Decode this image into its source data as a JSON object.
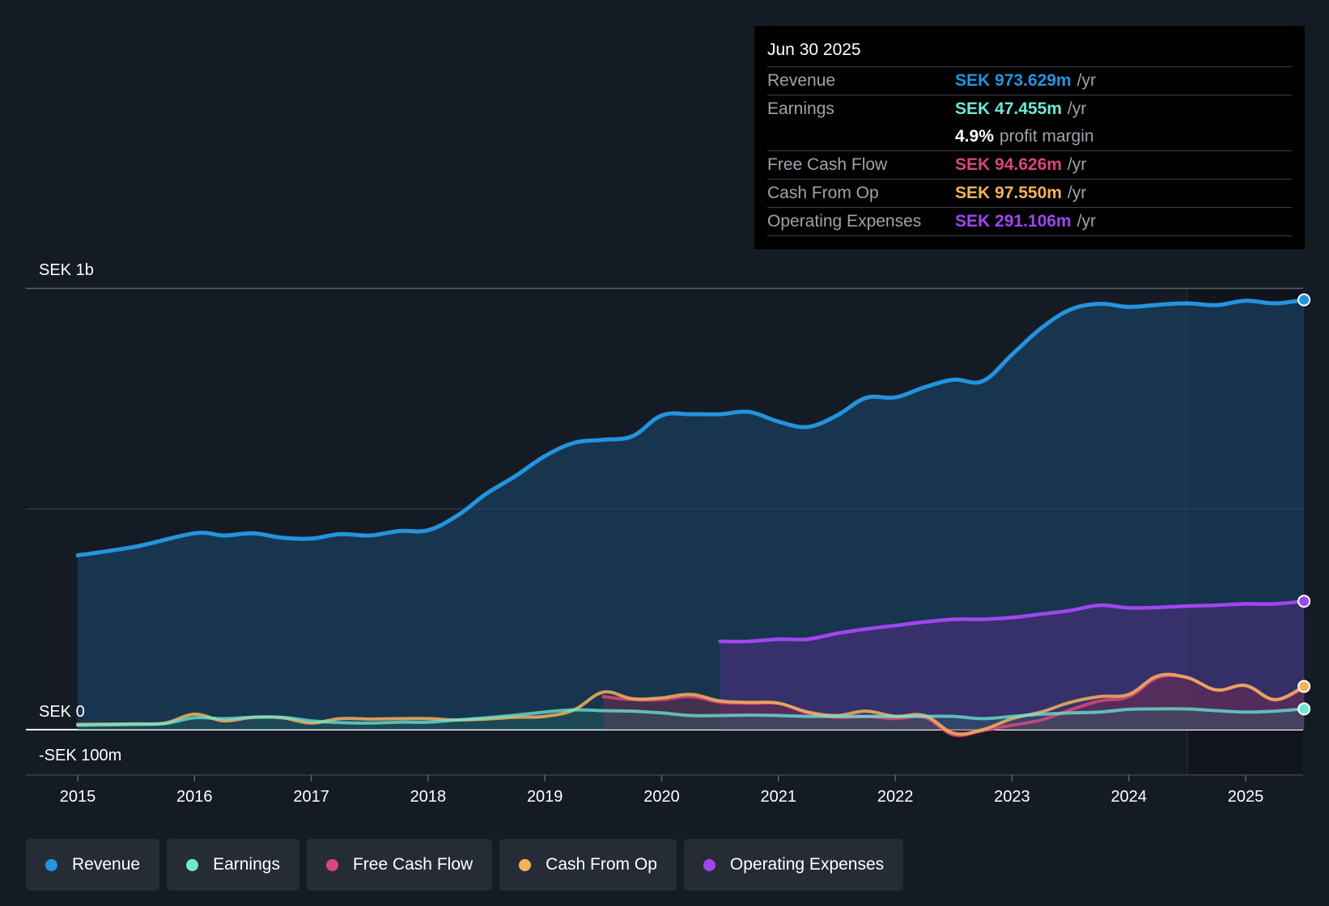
{
  "tooltip": {
    "date": "Jun 30 2025",
    "rows": {
      "revenue": {
        "label": "Revenue",
        "value": "SEK 973.629m",
        "unit": "/yr",
        "color": "#2394df"
      },
      "earnings": {
        "label": "Earnings",
        "value": "SEK 47.455m",
        "unit": "/yr",
        "color": "#6ee8d4"
      },
      "profit_margin": {
        "value": "4.9%",
        "text": "profit margin"
      },
      "fcf": {
        "label": "Free Cash Flow",
        "value": "SEK 94.626m",
        "unit": "/yr",
        "color": "#d9467c"
      },
      "cfo": {
        "label": "Cash From Op",
        "value": "SEK 97.550m",
        "unit": "/yr",
        "color": "#f2b25c"
      },
      "opex": {
        "label": "Operating Expenses",
        "value": "SEK 291.106m",
        "unit": "/yr",
        "color": "#a046ee"
      }
    }
  },
  "legend": [
    {
      "label": "Revenue",
      "color": "#2394df"
    },
    {
      "label": "Earnings",
      "color": "#6ee8d4"
    },
    {
      "label": "Free Cash Flow",
      "color": "#d9467c"
    },
    {
      "label": "Cash From Op",
      "color": "#f2b25c"
    },
    {
      "label": "Operating Expenses",
      "color": "#a046ee"
    }
  ],
  "chart_data": {
    "type": "area",
    "title": "",
    "xlabel": "",
    "ylabel": "",
    "y_axis_labels": {
      "top": "SEK 1b",
      "zero": "SEK 0",
      "bottom": "-SEK 100m"
    },
    "ylim": [
      -100,
      1000
    ],
    "xlim": [
      2015.0,
      2025.5
    ],
    "x_ticks": [
      "2015",
      "2016",
      "2017",
      "2018",
      "2019",
      "2020",
      "2021",
      "2022",
      "2023",
      "2024",
      "2025"
    ],
    "grid": true,
    "forecast_shading_start": 2024.5,
    "series": [
      {
        "name": "Revenue",
        "color": "#2394df",
        "fill": true,
        "x": [
          2015.0,
          2015.5,
          2016.0,
          2016.25,
          2016.5,
          2016.75,
          2017.0,
          2017.25,
          2017.5,
          2017.75,
          2018.0,
          2018.25,
          2018.5,
          2018.75,
          2019.0,
          2019.25,
          2019.5,
          2019.75,
          2020.0,
          2020.25,
          2020.5,
          2020.75,
          2021.0,
          2021.25,
          2021.5,
          2021.75,
          2022.0,
          2022.25,
          2022.5,
          2022.75,
          2023.0,
          2023.25,
          2023.5,
          2023.75,
          2024.0,
          2024.25,
          2024.5,
          2024.75,
          2025.0,
          2025.25,
          2025.5
        ],
        "values": [
          395,
          415,
          445,
          440,
          445,
          435,
          433,
          443,
          440,
          450,
          452,
          485,
          535,
          575,
          620,
          650,
          657,
          665,
          712,
          715,
          715,
          720,
          698,
          686,
          712,
          752,
          753,
          776,
          793,
          790,
          850,
          910,
          952,
          965,
          958,
          963,
          966,
          962,
          972,
          966,
          974
        ]
      },
      {
        "name": "Operating Expenses",
        "color": "#a046ee",
        "fill": true,
        "x": [
          2020.5,
          2020.75,
          2021.0,
          2021.25,
          2021.5,
          2021.75,
          2022.0,
          2022.25,
          2022.5,
          2022.75,
          2023.0,
          2023.25,
          2023.5,
          2023.75,
          2024.0,
          2024.25,
          2024.5,
          2024.75,
          2025.0,
          2025.25,
          2025.5
        ],
        "values": [
          200,
          200,
          205,
          205,
          218,
          228,
          236,
          244,
          250,
          250,
          254,
          262,
          270,
          282,
          276,
          277,
          280,
          282,
          285,
          285,
          291
        ]
      },
      {
        "name": "Free Cash Flow",
        "color": "#d9467c",
        "fill": true,
        "x": [
          2019.5,
          2019.75,
          2020.0,
          2020.25,
          2020.5,
          2020.75,
          2021.0,
          2021.25,
          2021.5,
          2021.75,
          2022.0,
          2022.25,
          2022.5,
          2022.75,
          2023.0,
          2023.25,
          2023.5,
          2023.75,
          2024.0,
          2024.25,
          2024.5,
          2024.75,
          2025.0,
          2025.25,
          2025.5
        ],
        "values": [
          75,
          68,
          68,
          75,
          62,
          60,
          60,
          38,
          28,
          30,
          25,
          28,
          -12,
          -2,
          10,
          22,
          45,
          65,
          75,
          118,
          118,
          90,
          100,
          68,
          95
        ]
      },
      {
        "name": "Cash From Op",
        "color": "#f2b25c",
        "fill": false,
        "x": [
          2015.0,
          2015.5,
          2015.75,
          2016.0,
          2016.25,
          2016.5,
          2016.75,
          2017.0,
          2017.25,
          2017.5,
          2017.75,
          2018.0,
          2018.25,
          2018.5,
          2018.75,
          2019.0,
          2019.25,
          2019.5,
          2019.75,
          2020.0,
          2020.25,
          2020.5,
          2020.75,
          2021.0,
          2021.25,
          2021.5,
          2021.75,
          2022.0,
          2022.25,
          2022.5,
          2022.75,
          2023.0,
          2023.25,
          2023.5,
          2023.75,
          2024.0,
          2024.25,
          2024.5,
          2024.75,
          2025.0,
          2025.25,
          2025.5
        ],
        "values": [
          12,
          13,
          15,
          35,
          20,
          28,
          27,
          15,
          25,
          24,
          25,
          25,
          22,
          24,
          28,
          30,
          45,
          85,
          70,
          72,
          80,
          65,
          62,
          60,
          40,
          32,
          42,
          30,
          32,
          -8,
          0,
          25,
          40,
          62,
          75,
          80,
          122,
          118,
          90,
          100,
          68,
          98
        ]
      },
      {
        "name": "Earnings",
        "color": "#6ee8d4",
        "fill": true,
        "x": [
          2015.0,
          2015.5,
          2015.75,
          2016.0,
          2016.25,
          2016.5,
          2016.75,
          2017.0,
          2017.25,
          2017.5,
          2017.75,
          2018.0,
          2018.25,
          2018.5,
          2018.75,
          2019.0,
          2019.25,
          2019.5,
          2019.75,
          2020.0,
          2020.25,
          2020.5,
          2020.75,
          2021.0,
          2021.25,
          2021.5,
          2021.75,
          2022.0,
          2022.25,
          2022.5,
          2022.75,
          2023.0,
          2023.25,
          2023.5,
          2023.75,
          2024.0,
          2024.25,
          2024.5,
          2024.75,
          2025.0,
          2025.25,
          2025.5
        ],
        "values": [
          10,
          12,
          14,
          27,
          25,
          28,
          28,
          20,
          16,
          15,
          17,
          17,
          22,
          27,
          33,
          40,
          45,
          43,
          42,
          38,
          32,
          32,
          33,
          32,
          30,
          30,
          30,
          30,
          30,
          30,
          25,
          30,
          35,
          38,
          40,
          46,
          47,
          47,
          43,
          40,
          42,
          47
        ]
      }
    ],
    "end_markers": [
      {
        "series": "Revenue",
        "value": 974
      },
      {
        "series": "Operating Expenses",
        "value": 291
      },
      {
        "series": "Cash From Op",
        "value": 98
      },
      {
        "series": "Earnings",
        "value": 47
      }
    ]
  }
}
